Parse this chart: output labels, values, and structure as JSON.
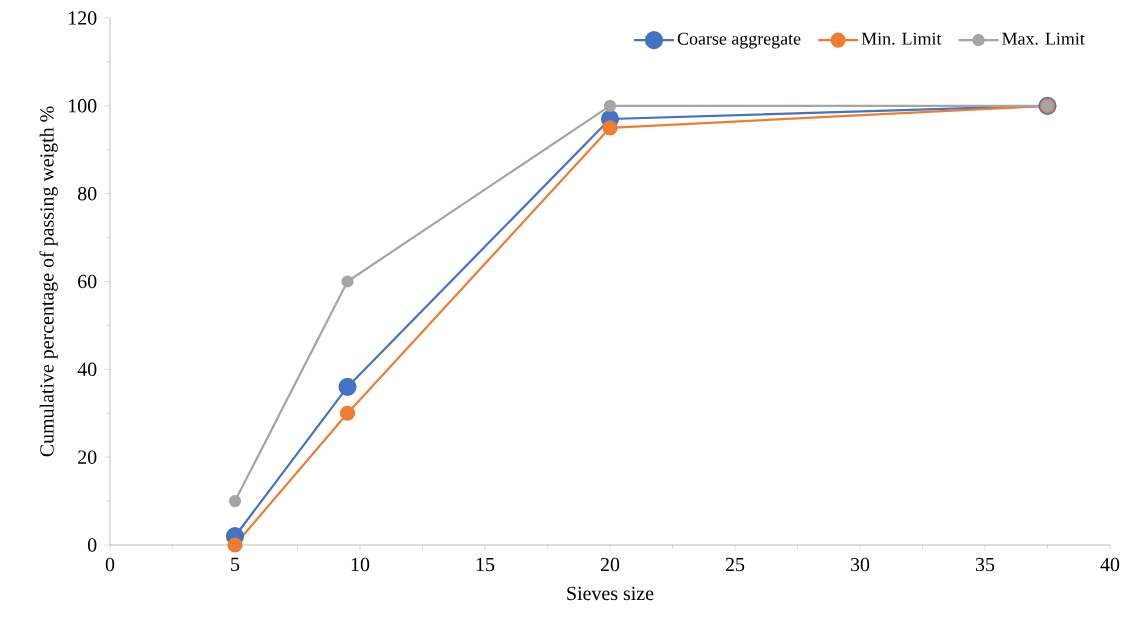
{
  "chart_data": {
    "type": "line",
    "xlabel": "Sieves size",
    "ylabel": "Cumulative percentage of passing weigth %",
    "xlim": [
      0,
      40
    ],
    "ylim": [
      0,
      120
    ],
    "xticks": [
      0,
      5,
      10,
      15,
      20,
      25,
      30,
      35,
      40
    ],
    "yticks": [
      0,
      20,
      40,
      60,
      80,
      100,
      120
    ],
    "x": [
      5,
      9.5,
      20,
      37.5
    ],
    "series": [
      {
        "name": "Coarse aggregate",
        "color": "#4472c4",
        "values": [
          2,
          36,
          97,
          100
        ]
      },
      {
        "name": "Min. Limit",
        "color": "#ed7d31",
        "values": [
          0,
          30,
          95,
          100
        ]
      },
      {
        "name": "Max. Limit",
        "color": "#a5a5a5",
        "values": [
          10,
          60,
          100,
          100
        ]
      }
    ],
    "grid": false,
    "legend": "top right",
    "marker": "circle",
    "line_style": "solid"
  }
}
